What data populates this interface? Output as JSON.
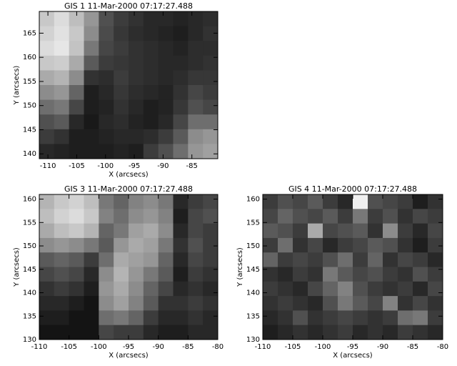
{
  "chart_data": [
    {
      "type": "heatmap",
      "title": "GIS 1 11-Mar-2000 07:17:27.488",
      "xlabel": "X (arcsecs)",
      "ylabel": "Y (arcsecs)",
      "colormap": "gray",
      "xlim": [
        -111.5,
        -80.5
      ],
      "ylim": [
        139,
        169.5
      ],
      "xticks": [
        -110,
        -105,
        -100,
        -95,
        -90,
        -85
      ],
      "yticks": [
        140,
        145,
        150,
        155,
        160,
        165
      ],
      "z": [
        [
          200,
          220,
          190,
          150,
          80,
          60,
          50,
          40,
          40,
          35,
          40,
          45
        ],
        [
          210,
          225,
          200,
          140,
          75,
          55,
          45,
          40,
          35,
          30,
          40,
          50
        ],
        [
          220,
          230,
          195,
          120,
          70,
          60,
          50,
          45,
          40,
          35,
          45,
          45
        ],
        [
          200,
          205,
          170,
          90,
          60,
          55,
          50,
          45,
          40,
          40,
          45,
          50
        ],
        [
          170,
          180,
          140,
          50,
          45,
          60,
          50,
          45,
          40,
          45,
          55,
          55
        ],
        [
          140,
          150,
          100,
          30,
          40,
          55,
          45,
          40,
          35,
          50,
          70,
          60
        ],
        [
          110,
          120,
          70,
          30,
          35,
          50,
          40,
          30,
          35,
          55,
          80,
          70
        ],
        [
          80,
          90,
          40,
          25,
          40,
          45,
          35,
          30,
          40,
          70,
          110,
          110
        ],
        [
          60,
          50,
          30,
          30,
          35,
          40,
          40,
          45,
          60,
          90,
          140,
          150
        ],
        [
          40,
          35,
          30,
          30,
          30,
          35,
          30,
          60,
          80,
          110,
          150,
          160
        ]
      ]
    },
    {
      "type": "heatmap",
      "title": "GIS 3 11-Mar-2000 07:17:27.488",
      "xlabel": "X (arcsecs)",
      "ylabel": "Y (arcsecs)",
      "colormap": "gray",
      "xlim": [
        -110,
        -80
      ],
      "ylim": [
        130,
        161
      ],
      "xticks": [
        -110,
        -105,
        -100,
        -95,
        -90,
        -85,
        -80
      ],
      "yticks": [
        130,
        135,
        140,
        145,
        150,
        155,
        160
      ],
      "z": [
        [
          180,
          200,
          210,
          190,
          120,
          100,
          130,
          140,
          120,
          40,
          60,
          70
        ],
        [
          190,
          210,
          220,
          200,
          130,
          110,
          140,
          150,
          130,
          30,
          70,
          80
        ],
        [
          170,
          190,
          200,
          180,
          100,
          120,
          160,
          170,
          140,
          40,
          70,
          60
        ],
        [
          140,
          150,
          140,
          120,
          90,
          150,
          170,
          160,
          120,
          50,
          80,
          60
        ],
        [
          90,
          100,
          90,
          60,
          110,
          170,
          160,
          150,
          100,
          40,
          70,
          60
        ],
        [
          70,
          80,
          70,
          40,
          140,
          180,
          150,
          120,
          90,
          30,
          60,
          50
        ],
        [
          50,
          60,
          50,
          30,
          150,
          170,
          140,
          100,
          70,
          40,
          50,
          40
        ],
        [
          40,
          40,
          30,
          20,
          140,
          160,
          130,
          90,
          50,
          50,
          60,
          50
        ],
        [
          30,
          30,
          20,
          20,
          110,
          120,
          100,
          60,
          40,
          40,
          50,
          40
        ],
        [
          20,
          20,
          20,
          20,
          70,
          60,
          60,
          40,
          30,
          30,
          40,
          40
        ]
      ]
    },
    {
      "type": "heatmap",
      "title": "GIS 4 11-Mar-2000 07:17:27.488",
      "xlabel": "X (arcsecs)",
      "ylabel": "Y (arcsecs)",
      "colormap": "gray",
      "xlim": [
        -110,
        -80
      ],
      "ylim": [
        130,
        161
      ],
      "xticks": [
        -110,
        -105,
        -100,
        -95,
        -90,
        -85,
        -80
      ],
      "yticks": [
        130,
        135,
        140,
        145,
        150,
        155,
        160
      ],
      "z": [
        [
          60,
          80,
          70,
          90,
          60,
          40,
          240,
          80,
          70,
          60,
          30,
          50
        ],
        [
          70,
          100,
          80,
          70,
          90,
          60,
          120,
          60,
          80,
          50,
          70,
          60
        ],
        [
          90,
          80,
          60,
          170,
          70,
          80,
          90,
          50,
          140,
          60,
          40,
          70
        ],
        [
          60,
          110,
          50,
          70,
          40,
          60,
          70,
          90,
          80,
          50,
          30,
          60
        ],
        [
          100,
          60,
          70,
          60,
          80,
          110,
          60,
          100,
          50,
          70,
          60,
          40
        ],
        [
          50,
          40,
          60,
          50,
          120,
          90,
          70,
          80,
          60,
          50,
          80,
          60
        ],
        [
          60,
          50,
          40,
          70,
          100,
          130,
          80,
          60,
          50,
          60,
          40,
          70
        ],
        [
          50,
          60,
          50,
          40,
          80,
          120,
          90,
          70,
          130,
          50,
          70,
          50
        ],
        [
          40,
          50,
          80,
          50,
          60,
          70,
          60,
          50,
          60,
          110,
          120,
          60
        ],
        [
          30,
          40,
          50,
          40,
          50,
          60,
          40,
          50,
          40,
          60,
          50,
          40
        ]
      ]
    }
  ]
}
